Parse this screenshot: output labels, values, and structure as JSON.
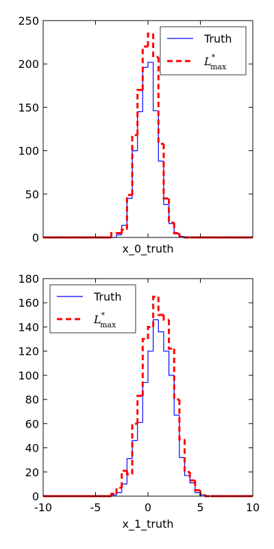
{
  "chart_data": [
    {
      "type": "histogram",
      "xlabel": "x_0_truth",
      "bins": [
        -10,
        -9.5,
        -9,
        -8.5,
        -8,
        -7.5,
        -7,
        -6.5,
        -6,
        -5.5,
        -5,
        -4.5,
        -4,
        -3.5,
        -3,
        -2.5,
        -2,
        -1.5,
        -1,
        -0.5,
        0,
        0.5,
        1,
        1.5,
        2,
        2.5,
        3,
        3.5,
        4,
        4.5,
        5,
        5.5,
        6,
        6.5,
        7,
        7.5,
        8,
        8.5,
        9,
        9.5,
        10
      ],
      "series": [
        {
          "name": "Truth",
          "color": "#0000ff",
          "style": "solid",
          "values": [
            0,
            0,
            0,
            0,
            0,
            0,
            0,
            0,
            0,
            0,
            0,
            0,
            0,
            0,
            3,
            14,
            45,
            100,
            145,
            196,
            202,
            146,
            88,
            38,
            16,
            4,
            1,
            0,
            0,
            0,
            0,
            0,
            0,
            0,
            0,
            0,
            0,
            0,
            0,
            0
          ]
        },
        {
          "name": "L",
          "superscript": "*",
          "subscript": "max",
          "color": "#ff0000",
          "style": "dashed",
          "values": [
            0,
            0,
            0,
            0,
            0,
            0,
            0,
            0,
            0,
            0,
            0,
            0,
            0,
            5,
            5,
            9,
            49,
            118,
            170,
            220,
            235,
            208,
            108,
            45,
            17,
            5,
            1,
            0,
            0,
            0,
            0,
            0,
            0,
            0,
            0,
            0,
            0,
            0,
            0,
            0
          ]
        }
      ],
      "xlim": [
        -10,
        10
      ],
      "xticks": [
        -10,
        -5,
        0,
        5,
        10
      ],
      "show_xtick_labels": false,
      "ylim": [
        0,
        250
      ],
      "yticks": [
        0,
        50,
        100,
        150,
        200,
        250
      ],
      "legend": "upper right"
    },
    {
      "type": "histogram",
      "xlabel": "x_1_truth",
      "bins": [
        -10,
        -9.5,
        -9,
        -8.5,
        -8,
        -7.5,
        -7,
        -6.5,
        -6,
        -5.5,
        -5,
        -4.5,
        -4,
        -3.5,
        -3,
        -2.5,
        -2,
        -1.5,
        -1,
        -0.5,
        0,
        0.5,
        1,
        1.5,
        2,
        2.5,
        3,
        3.5,
        4,
        4.5,
        5,
        5.5,
        6,
        6.5,
        7,
        7.5,
        8,
        8.5,
        9,
        9.5,
        10
      ],
      "series": [
        {
          "name": "Truth",
          "color": "#0000ff",
          "style": "solid",
          "values": [
            0,
            0,
            0,
            0,
            0,
            0,
            0,
            0,
            0,
            0,
            0,
            0,
            0,
            1,
            3,
            10,
            31,
            46,
            61,
            94,
            120,
            146,
            136,
            120,
            100,
            67,
            32,
            17,
            11,
            3,
            1,
            0,
            0,
            0,
            0,
            0,
            0,
            0,
            0,
            0
          ]
        },
        {
          "name": "L",
          "superscript": "*",
          "subscript": "max",
          "color": "#ff0000",
          "style": "dashed",
          "values": [
            0,
            0,
            0,
            0,
            0,
            0,
            0,
            0,
            0,
            0,
            0,
            0,
            0,
            2,
            7,
            21,
            18,
            60,
            83,
            130,
            140,
            165,
            150,
            146,
            122,
            80,
            47,
            20,
            13,
            5,
            1,
            0,
            0,
            0,
            0,
            0,
            0,
            0,
            0,
            0
          ]
        }
      ],
      "xlim": [
        -10,
        10
      ],
      "xticks": [
        -10,
        -5,
        0,
        5,
        10
      ],
      "show_xtick_labels": true,
      "ylim": [
        0,
        180
      ],
      "yticks": [
        0,
        20,
        40,
        60,
        80,
        100,
        120,
        140,
        160,
        180
      ],
      "legend": "upper left"
    }
  ]
}
